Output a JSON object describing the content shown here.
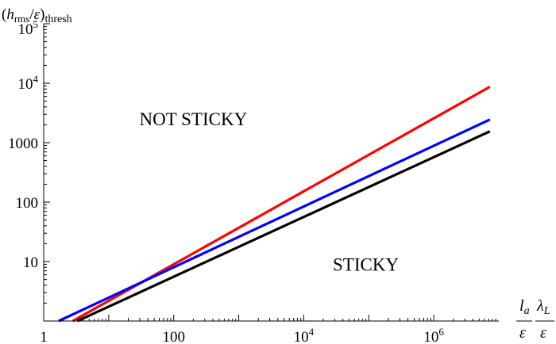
{
  "chart_data": {
    "type": "line",
    "scale": {
      "x": "log",
      "y": "log"
    },
    "xlim": [
      1,
      10000000
    ],
    "ylim": [
      1,
      100000
    ],
    "x_ticks": [
      {
        "value": 1,
        "base": "1",
        "exp": ""
      },
      {
        "value": 100,
        "base": "100",
        "exp": ""
      },
      {
        "value": 10000,
        "base": "10",
        "exp": "4"
      },
      {
        "value": 1000000,
        "base": "10",
        "exp": "6"
      }
    ],
    "y_ticks": [
      {
        "value": 10,
        "base": "10",
        "exp": ""
      },
      {
        "value": 100,
        "base": "100",
        "exp": ""
      },
      {
        "value": 1000,
        "base": "1000",
        "exp": ""
      },
      {
        "value": 10000,
        "base": "10",
        "exp": "4"
      },
      {
        "value": 100000,
        "base": "10",
        "exp": "5"
      }
    ],
    "ylabel": {
      "open": "(",
      "h": "h",
      "sub_rms": "rms",
      "slash": "/",
      "eps": "ε",
      "close": ")",
      "sub_thresh": "thresh"
    },
    "xlabel": [
      {
        "num": "l",
        "num_sub": "a",
        "den": "ε"
      },
      {
        "num": "λ",
        "num_sub": "L",
        "den": "ε"
      }
    ],
    "annotations": [
      {
        "text": "NOT STICKY",
        "x": 200,
        "y": 2500
      },
      {
        "text": "STICKY",
        "x": 90000,
        "y": 9
      }
    ],
    "series": [
      {
        "color": "#ff0000",
        "x": [
          2.8,
          7300000
        ],
        "y": [
          1,
          8700
        ]
      },
      {
        "color": "#0000ff",
        "x": [
          1.7,
          7300000
        ],
        "y": [
          1,
          2450
        ]
      },
      {
        "color": "#000000",
        "x": [
          3.3,
          7300000
        ],
        "y": [
          1,
          1550
        ]
      }
    ]
  }
}
